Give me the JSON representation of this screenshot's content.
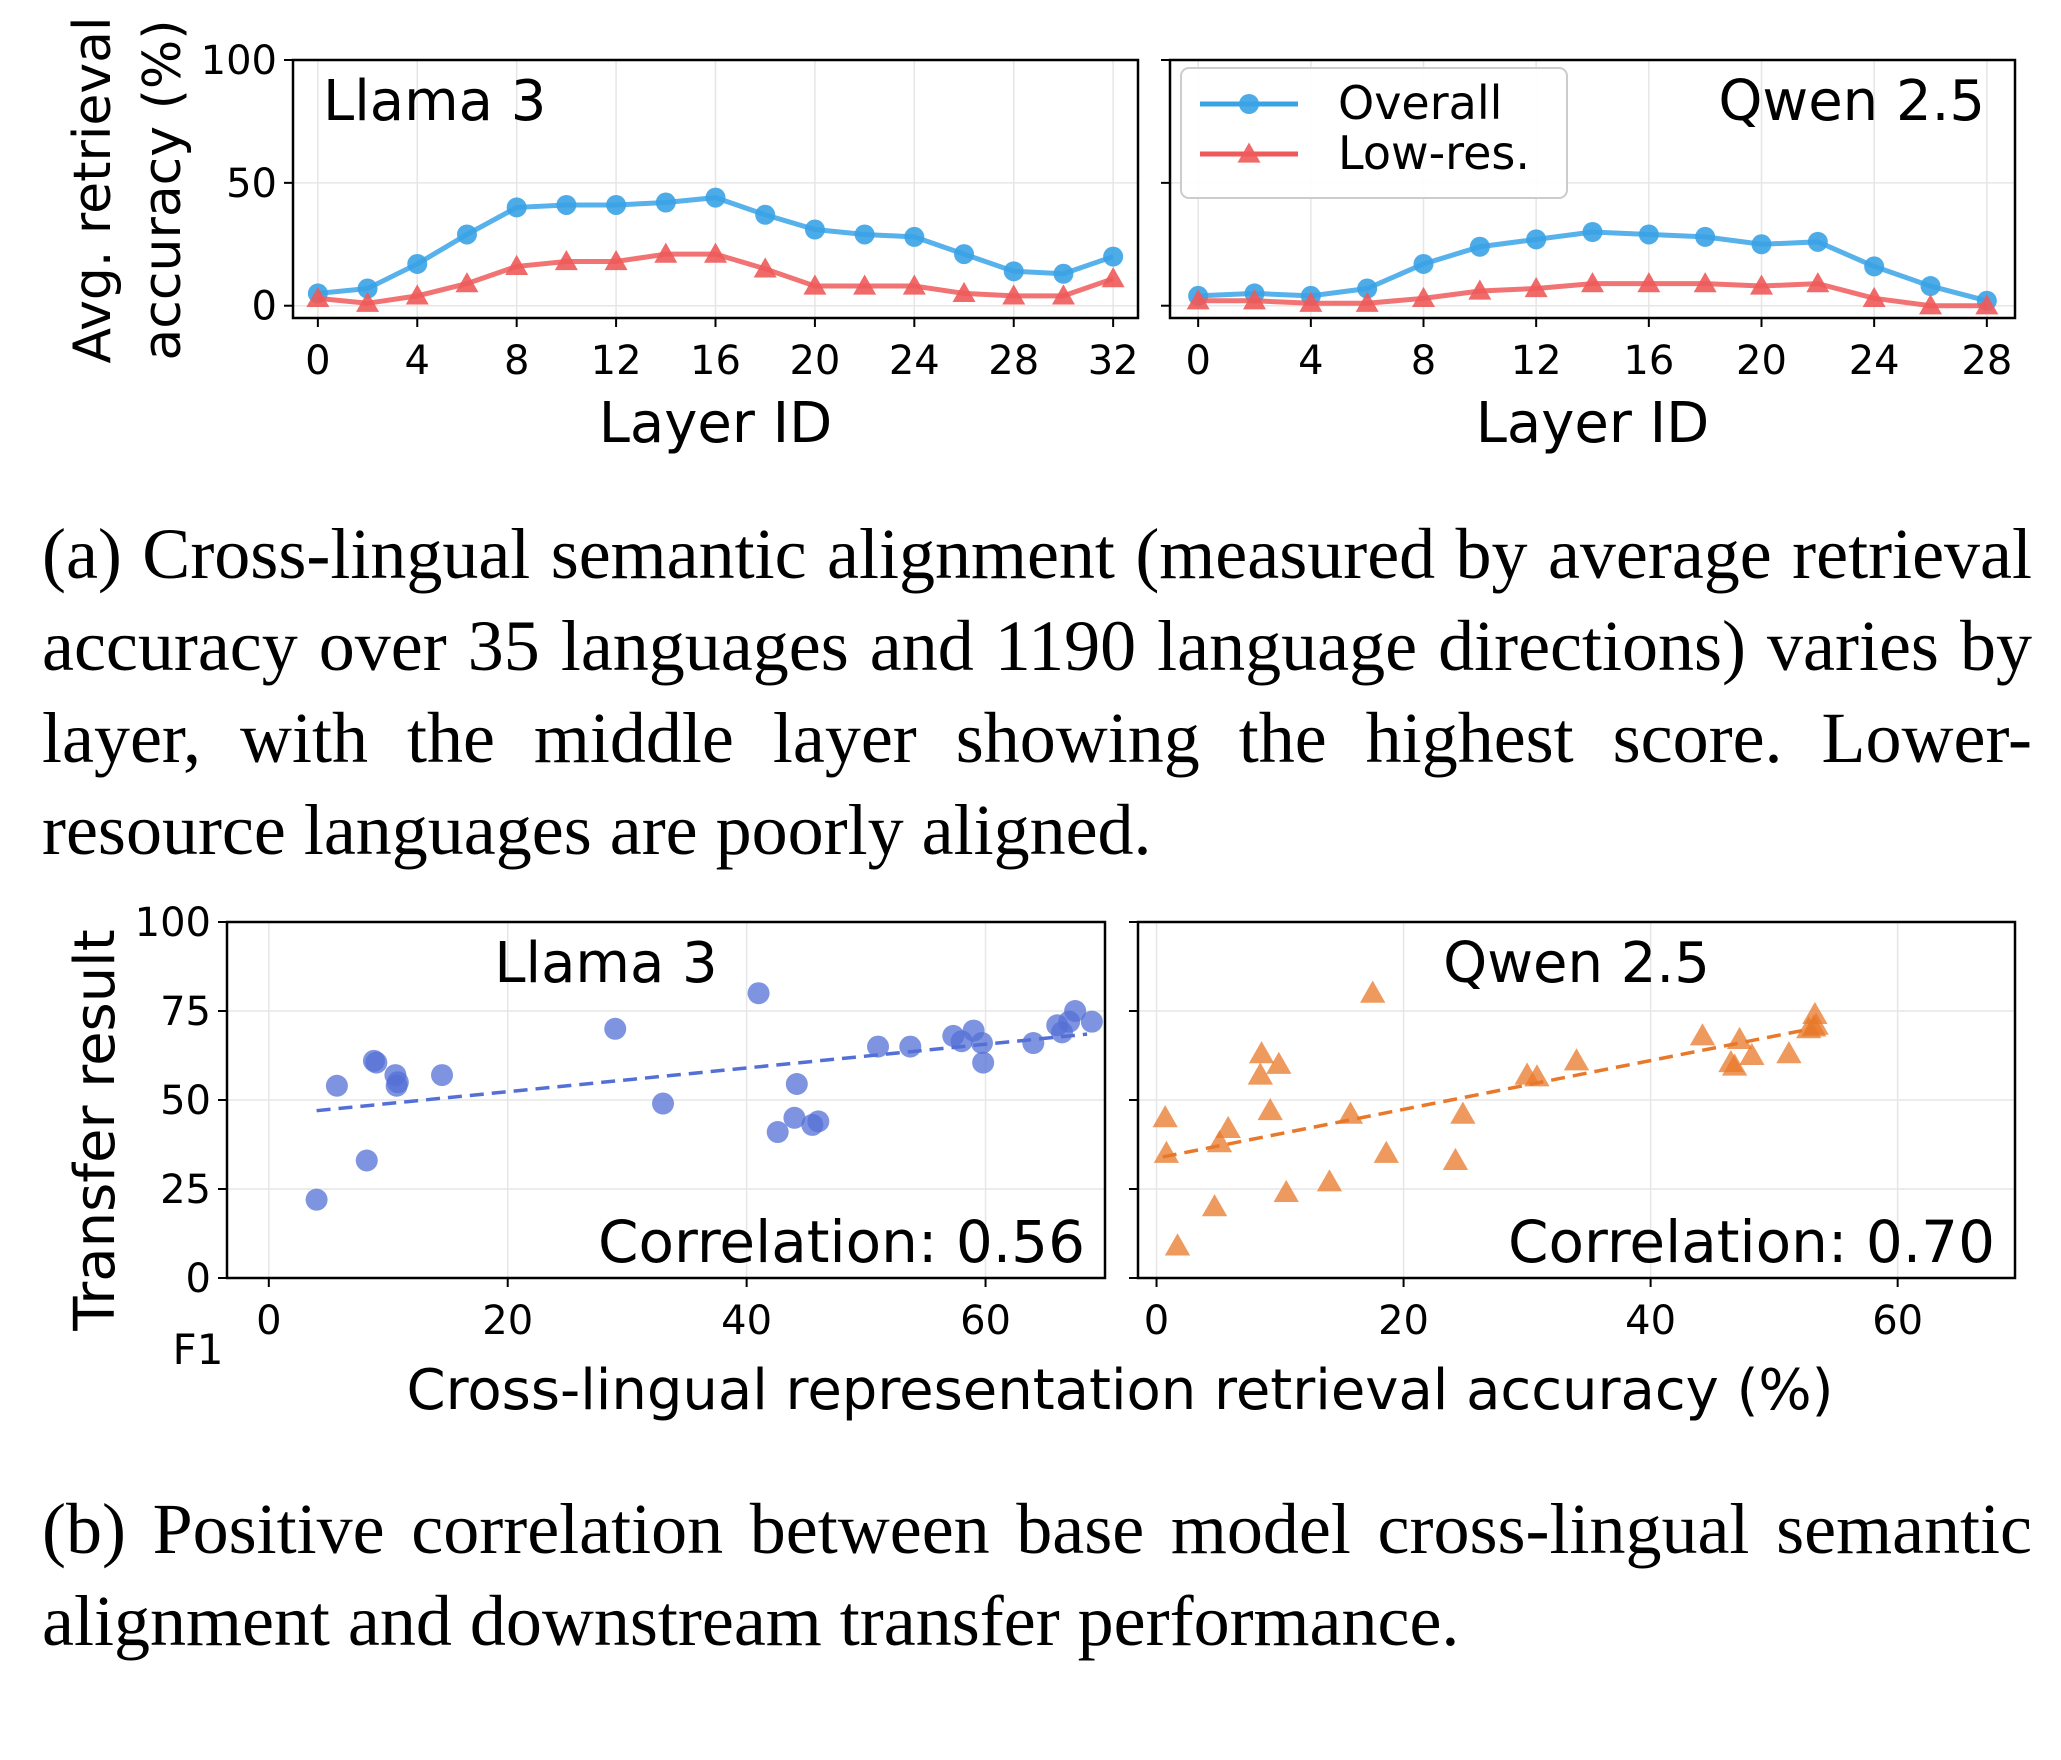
{
  "chart_data": [
    {
      "type": "line",
      "panel_label": "Llama 3",
      "xlabel": "Layer ID",
      "ylabel": "Avg. retrieval accuracy (%)",
      "ylabel_lines": [
        "Avg. retrieval",
        "accuracy (%)"
      ],
      "xlim": [
        -1,
        33
      ],
      "ylim": [
        -5,
        100
      ],
      "xticks": [
        "0",
        "4",
        "8",
        "12",
        "16",
        "20",
        "24",
        "28",
        "32"
      ],
      "yticks": [
        "0",
        "50",
        "100"
      ],
      "grid": true,
      "x": [
        0,
        2,
        4,
        6,
        8,
        10,
        12,
        14,
        16,
        18,
        20,
        22,
        24,
        26,
        28,
        30,
        32
      ],
      "series": [
        {
          "name": "Overall",
          "color": "#3aa3e6",
          "marker": "circle",
          "values": [
            5,
            7,
            17,
            29,
            40,
            41,
            41,
            42,
            44,
            37,
            31,
            29,
            28,
            21,
            14,
            13,
            20
          ]
        },
        {
          "name": "Low-res.",
          "color": "#ee5a5a",
          "marker": "triangle",
          "values": [
            3,
            1,
            4,
            9,
            16,
            18,
            18,
            21,
            21,
            15,
            8,
            8,
            8,
            5,
            4,
            4,
            11
          ]
        }
      ]
    },
    {
      "type": "line",
      "panel_label": "Qwen 2.5",
      "xlabel": "Layer ID",
      "xlim": [
        -1,
        29
      ],
      "ylim": [
        -5,
        100
      ],
      "xticks": [
        "0",
        "4",
        "8",
        "12",
        "16",
        "20",
        "24",
        "28"
      ],
      "grid": true,
      "legend": {
        "placement": "top-left",
        "entries": [
          "Overall",
          "Low-res."
        ]
      },
      "x": [
        0,
        2,
        4,
        6,
        8,
        10,
        12,
        14,
        16,
        18,
        20,
        22,
        24,
        26,
        28
      ],
      "series": [
        {
          "name": "Overall",
          "color": "#3aa3e6",
          "marker": "circle",
          "values": [
            4,
            5,
            4,
            7,
            17,
            24,
            27,
            30,
            29,
            28,
            25,
            26,
            16,
            8,
            2
          ]
        },
        {
          "name": "Low-res.",
          "color": "#ee5a5a",
          "marker": "triangle",
          "values": [
            2,
            2,
            1,
            1,
            3,
            6,
            7,
            9,
            9,
            9,
            8,
            9,
            3,
            0,
            0
          ]
        }
      ]
    },
    {
      "type": "scatter",
      "panel_label": "Llama 3",
      "ylabel": "Transfer result",
      "ylabel_unit": "F1",
      "xlim": [
        -3.5,
        70
      ],
      "ylim": [
        0,
        100
      ],
      "xticks": [
        "0",
        "20",
        "40",
        "60"
      ],
      "yticks": [
        "0",
        "25",
        "50",
        "75",
        "100"
      ],
      "grid": true,
      "color": "#5470d6",
      "annotation": "Correlation: 0.56",
      "trend": {
        "x": [
          4,
          68.5
        ],
        "y": [
          47,
          68.5
        ]
      },
      "points": [
        [
          4,
          22
        ],
        [
          5.7,
          54
        ],
        [
          8.2,
          33
        ],
        [
          8.8,
          61
        ],
        [
          9,
          60.5
        ],
        [
          10.6,
          57
        ],
        [
          10.7,
          54
        ],
        [
          10.8,
          55
        ],
        [
          14.5,
          57
        ],
        [
          29,
          70
        ],
        [
          33,
          49
        ],
        [
          41,
          80
        ],
        [
          42.6,
          41
        ],
        [
          44,
          45
        ],
        [
          44.2,
          54.5
        ],
        [
          45.5,
          43
        ],
        [
          46,
          44
        ],
        [
          51,
          65
        ],
        [
          53.7,
          65
        ],
        [
          57.3,
          68
        ],
        [
          58,
          66.5
        ],
        [
          59,
          69.5
        ],
        [
          59.7,
          66
        ],
        [
          59.8,
          60.5
        ],
        [
          64,
          66
        ],
        [
          66,
          71
        ],
        [
          66.4,
          69
        ],
        [
          67,
          72
        ],
        [
          67.5,
          75
        ],
        [
          68.9,
          72
        ]
      ]
    },
    {
      "type": "scatter",
      "panel_label": "Qwen 2.5",
      "xlim": [
        -1.5,
        69.5
      ],
      "ylim": [
        0,
        100
      ],
      "xticks": [
        "0",
        "20",
        "40",
        "60"
      ],
      "grid": true,
      "color": "#e8782a",
      "annotation": "Correlation: 0.70",
      "trend": {
        "x": [
          0.5,
          53
        ],
        "y": [
          34,
          70
        ]
      },
      "points": [
        [
          0.7,
          45
        ],
        [
          0.8,
          35
        ],
        [
          1.7,
          9
        ],
        [
          4.7,
          20
        ],
        [
          5.1,
          38
        ],
        [
          5.8,
          42
        ],
        [
          8.5,
          63
        ],
        [
          8.4,
          57
        ],
        [
          9.9,
          60
        ],
        [
          9.2,
          47
        ],
        [
          10.5,
          24
        ],
        [
          14,
          27
        ],
        [
          15.7,
          46
        ],
        [
          17.5,
          80
        ],
        [
          18.6,
          35
        ],
        [
          24.2,
          33
        ],
        [
          24.8,
          46
        ],
        [
          30,
          57
        ],
        [
          30.8,
          56.5
        ],
        [
          34,
          61
        ],
        [
          44.2,
          68
        ],
        [
          46.5,
          60.5
        ],
        [
          46.8,
          59.5
        ],
        [
          47.2,
          67
        ],
        [
          48.2,
          62.5
        ],
        [
          51.2,
          63
        ],
        [
          52.8,
          70
        ],
        [
          53.2,
          70.5
        ],
        [
          53.3,
          74
        ],
        [
          53.4,
          71
        ]
      ]
    }
  ],
  "xlabel_bottom": "Cross-lingual representation retrieval accuracy (%)",
  "caption_a": "(a) Cross-lingual semantic alignment (measured by average retrieval accuracy over 35 languages and 1190 language directions) varies by layer, with the middle layer showing the highest score. Lower-resource languages are poorly aligned.",
  "caption_b": "(b) Positive correlation between base model cross-lingual semantic alignment and downstream transfer performance."
}
